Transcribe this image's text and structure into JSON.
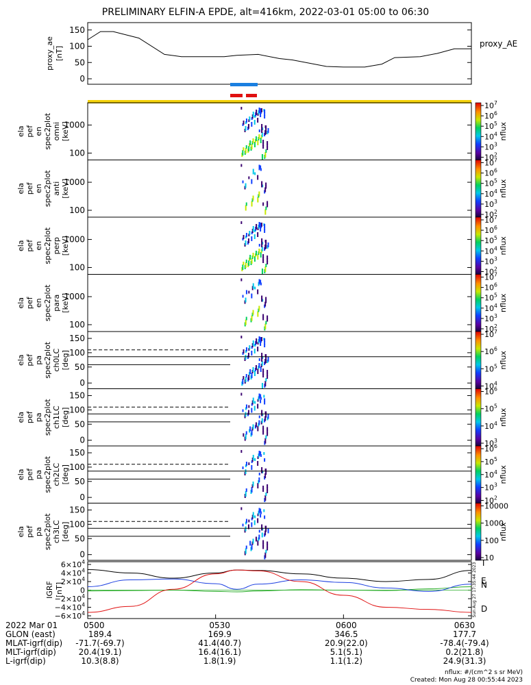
{
  "title": "PRELIMINARY ELFIN-A EPDE, alt=416km, 2022-03-01 05:00 to 06:30",
  "colors": {
    "bar_blue": "#1a7fe0",
    "bar_red": "#e01010",
    "bar_yellow": "#f5d20a",
    "grf_black": "#000000",
    "grf_green": "#22aa22",
    "grf_blue": "#1a3ee0",
    "grf_red": "#e01010"
  },
  "chart_data": [
    {
      "type": "line",
      "name": "proxy_ae",
      "ylabel": "proxy_ae\n[nT]",
      "ylim": [
        0,
        160
      ],
      "yticks": [
        "150",
        "100",
        "50",
        "0"
      ],
      "right_label": "proxy_AE",
      "x_minutes": [
        0,
        3,
        6,
        12,
        18,
        22,
        26,
        32,
        35,
        40,
        45,
        48,
        52,
        56,
        60,
        65,
        69,
        72,
        78,
        82,
        86,
        90
      ],
      "values": [
        120,
        145,
        145,
        125,
        75,
        68,
        68,
        68,
        72,
        75,
        62,
        58,
        48,
        38,
        36,
        36,
        45,
        65,
        68,
        78,
        92,
        92
      ]
    },
    {
      "type": "heatmap",
      "name": "elb_pef_en_spec2plot_omni",
      "ylabel": "ela\npef\nen\nspec2plot\nomni\n[keV]",
      "yticks": [
        "1000",
        "100"
      ],
      "colorbar_ticks": [
        "10^7",
        "10^6",
        "10^5",
        "10^4",
        "10^3",
        "10^2"
      ],
      "colorbar_label": "nflux"
    },
    {
      "type": "heatmap",
      "name": "elb_pef_en_spec2plot_anti",
      "ylabel": "ela\npef\nen\nspec2plot\nanti\n[keV]",
      "yticks": [
        "1000",
        "100"
      ],
      "colorbar_ticks": [
        "10^7",
        "10^6",
        "10^5",
        "10^4",
        "10^3",
        "10^2"
      ],
      "colorbar_label": "nflux"
    },
    {
      "type": "heatmap",
      "name": "elb_pef_en_spec2plot_perp",
      "ylabel": "ela\npef\nen\nspec2plot\nperp\n[keV]",
      "yticks": [
        "1000",
        "100"
      ],
      "colorbar_ticks": [
        "10^7",
        "10^6",
        "10^5",
        "10^4",
        "10^3",
        "10^2"
      ],
      "colorbar_label": "nflux"
    },
    {
      "type": "heatmap",
      "name": "elb_pef_en_spec2plot_para",
      "ylabel": "ela\npef\nen\nspec2plot\npara\n[keV]",
      "yticks": [
        "1000",
        "100"
      ],
      "colorbar_ticks": [
        "10^7",
        "10^6",
        "10^5",
        "10^4",
        "10^3",
        "10^2"
      ],
      "colorbar_label": "nflux"
    },
    {
      "type": "heatmap",
      "name": "elb_pef_pa_spec2plot_ch0LC",
      "ylabel": "ela\npef\npa\nspec2plot\nch0LC\n[deg]",
      "yticks": [
        "150",
        "100",
        "50",
        "0"
      ],
      "colorbar_ticks": [
        "10^7",
        "10^6",
        "10^5",
        "10^4"
      ],
      "colorbar_label": "nflux"
    },
    {
      "type": "heatmap",
      "name": "elb_pef_pa_spec2plot_ch1LC",
      "ylabel": "ela\npef\npa\nspec2plot\nch1LC\n[deg]",
      "yticks": [
        "150",
        "100",
        "50",
        "0"
      ],
      "colorbar_ticks": [
        "10^6",
        "10^5",
        "10^4",
        "10^3"
      ],
      "colorbar_label": "nflux"
    },
    {
      "type": "heatmap",
      "name": "elb_pef_pa_spec2plot_ch2LC",
      "ylabel": "ela\npef\npa\nspec2plot\nch2LC\n[deg]",
      "yticks": [
        "150",
        "100",
        "50",
        "0"
      ],
      "colorbar_ticks": [
        "10^6",
        "10^5",
        "10^4",
        "10^3",
        "10^2"
      ],
      "colorbar_label": "nflux"
    },
    {
      "type": "heatmap",
      "name": "elb_pef_pa_spec2plot_ch3LC",
      "ylabel": "ela\npef\npa\nspec2plot\nch3LC\n[deg]",
      "yticks": [
        "150",
        "100",
        "50",
        "0"
      ],
      "colorbar_ticks": [
        "10000",
        "1000",
        "100",
        "10"
      ],
      "colorbar_label": "nflux"
    },
    {
      "type": "line",
      "name": "IGRF",
      "ylabel": "IGRF\n[nT]",
      "ylim": [
        -65000,
        65000
      ],
      "yticks": [
        "6×10^4",
        "4×10^4",
        "2×10^4",
        "0",
        "−2×10^4",
        "−4×10^4",
        "−6×10^4"
      ],
      "x_minutes": [
        0,
        10,
        20,
        30,
        35,
        40,
        50,
        60,
        70,
        80,
        90
      ],
      "series": [
        {
          "name": "T",
          "color": "#000000",
          "values": [
            48000,
            40000,
            28000,
            40000,
            47000,
            46000,
            38000,
            28000,
            20000,
            25000,
            46000
          ]
        },
        {
          "name": "E",
          "color": "#22aa22",
          "values": [
            -2000,
            -1000,
            0,
            -3000,
            -4000,
            -2000,
            1000,
            0,
            -1000,
            3000,
            8000
          ]
        },
        {
          "name": "N",
          "color": "#1a3ee0",
          "values": [
            8000,
            24000,
            26000,
            15000,
            2000,
            14000,
            24000,
            18000,
            5000,
            -3000,
            14000
          ]
        },
        {
          "name": "D",
          "color": "#e01010",
          "values": [
            -52000,
            -38000,
            2000,
            38000,
            47000,
            45000,
            20000,
            -12000,
            -40000,
            -45000,
            -52000
          ]
        }
      ],
      "side_stamp": "Sun Aug 27 17:35:44 2023"
    }
  ],
  "xaxis": {
    "tick_labels": [
      "0500",
      "0530",
      "0600",
      "0630"
    ],
    "date_label": "2022 Mar 01",
    "rows": [
      {
        "label": "GLON (east)",
        "values": [
          "189.4",
          "169.9",
          "346.5",
          "177.7"
        ]
      },
      {
        "label": "MLAT-igrf(dip)",
        "values": [
          "-71.7(-69.7)",
          "41.4(40.7)",
          "20.9(22.0)",
          "-78.4(-79.4)"
        ]
      },
      {
        "label": "MLT-igrf(dip)",
        "values": [
          "20.4(19.1)",
          "16.4(16.1)",
          "5.1(5.1)",
          "0.2(21.8)"
        ]
      },
      {
        "label": "L-igrf(dip)",
        "values": [
          "10.3(8.8)",
          "1.8(1.9)",
          "1.1(1.2)",
          "24.9(31.3)"
        ]
      }
    ]
  },
  "footer": {
    "units": "nflux: #/(cm^2 s sr MeV)",
    "created": "Created: Mon Aug 28 00:55:44 2023"
  }
}
